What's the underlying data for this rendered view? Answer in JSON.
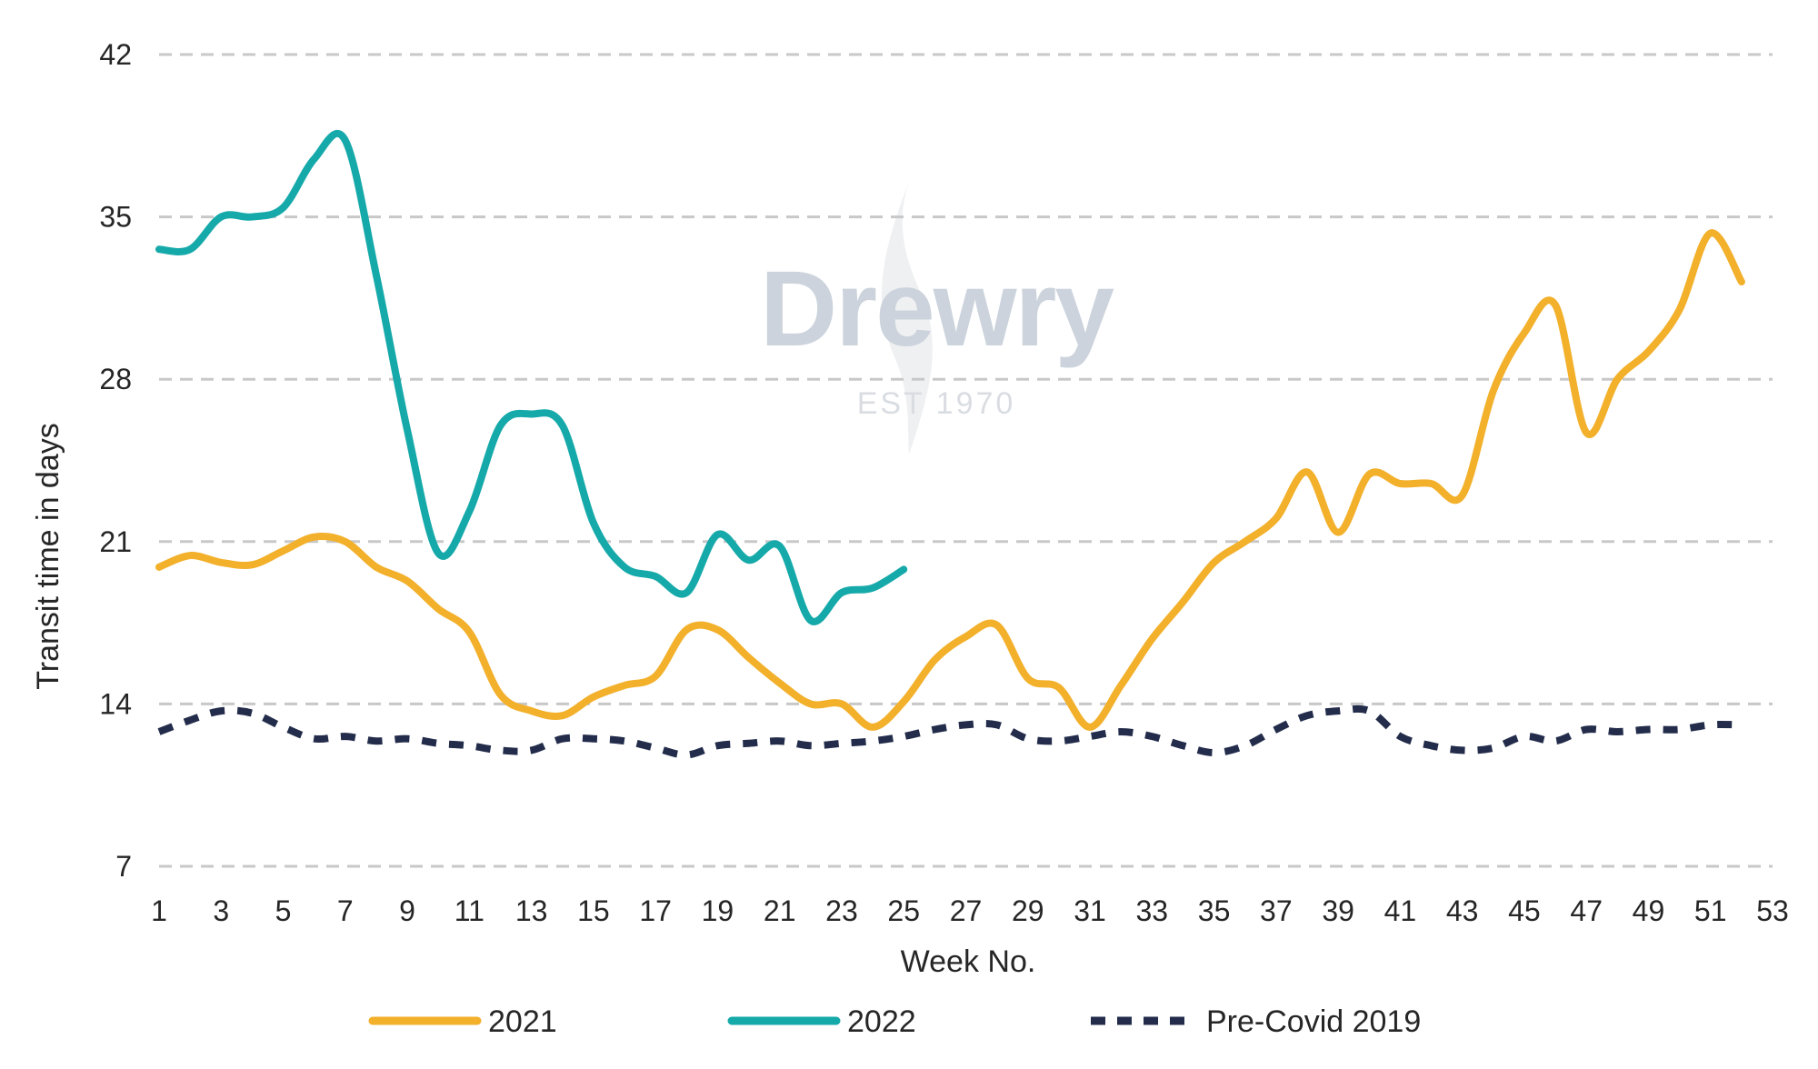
{
  "chart_data": {
    "type": "line",
    "title": "",
    "xlabel": "Week No.",
    "ylabel": "Transit time in days",
    "xlim": [
      1,
      53
    ],
    "ylim": [
      7,
      42
    ],
    "x_ticks": [
      1,
      3,
      5,
      7,
      9,
      11,
      13,
      15,
      17,
      19,
      21,
      23,
      25,
      27,
      29,
      31,
      33,
      35,
      37,
      39,
      41,
      43,
      45,
      47,
      49,
      51,
      53
    ],
    "y_ticks": [
      7,
      14,
      21,
      28,
      35,
      42
    ],
    "grid": "horizontal-dashed",
    "legend_position": "bottom",
    "watermark": {
      "brand": "Drewry",
      "est": "EST 1970"
    },
    "series": [
      {
        "name": "2021",
        "color": "#f2b02b",
        "style": "solid",
        "x": [
          1,
          2,
          3,
          4,
          5,
          6,
          7,
          8,
          9,
          10,
          11,
          12,
          13,
          14,
          15,
          16,
          17,
          18,
          19,
          20,
          21,
          22,
          23,
          24,
          25,
          26,
          27,
          28,
          29,
          30,
          31,
          32,
          33,
          34,
          35,
          36,
          37,
          38,
          39,
          40,
          41,
          42,
          43,
          44,
          45,
          46,
          47,
          48,
          49,
          50,
          51,
          52
        ],
        "values": [
          19.9,
          20.4,
          20.1,
          20.0,
          20.6,
          21.2,
          21.0,
          19.9,
          19.3,
          18.1,
          17.1,
          14.4,
          13.7,
          13.5,
          14.3,
          14.8,
          15.2,
          17.2,
          17.2,
          16.0,
          14.9,
          14.0,
          14.0,
          13.0,
          14.1,
          15.9,
          16.9,
          17.4,
          15.1,
          14.7,
          13.0,
          14.8,
          16.8,
          18.4,
          20.1,
          21.0,
          22.0,
          24.0,
          21.4,
          23.9,
          23.5,
          23.5,
          23.0,
          27.5,
          30.0,
          31.2,
          25.7,
          28.0,
          29.2,
          31.0,
          34.3,
          32.2
        ]
      },
      {
        "name": "2022",
        "color": "#16a9aa",
        "style": "solid",
        "x": [
          1,
          2,
          3,
          4,
          5,
          6,
          7,
          8,
          9,
          10,
          11,
          12,
          13,
          14,
          15,
          16,
          17,
          18,
          19,
          20,
          21,
          22,
          23,
          24,
          25
        ],
        "values": [
          33.6,
          33.6,
          35.0,
          35.0,
          35.4,
          37.5,
          38.3,
          32.5,
          25.8,
          20.5,
          22.3,
          26.0,
          26.5,
          26.0,
          21.8,
          19.9,
          19.5,
          18.8,
          21.3,
          20.2,
          20.8,
          17.6,
          18.8,
          19.0,
          19.8
        ]
      },
      {
        "name": "Pre-Covid 2019",
        "color": "#232d4b",
        "style": "dashed",
        "x": [
          1,
          2,
          3,
          4,
          5,
          6,
          7,
          8,
          9,
          10,
          11,
          12,
          13,
          14,
          15,
          16,
          17,
          18,
          19,
          20,
          21,
          22,
          23,
          24,
          25,
          26,
          27,
          28,
          29,
          30,
          31,
          32,
          33,
          34,
          35,
          36,
          37,
          38,
          39,
          40,
          41,
          42,
          43,
          44,
          45,
          46,
          47,
          48,
          49,
          50,
          51,
          52
        ],
        "values": [
          12.8,
          13.3,
          13.7,
          13.6,
          13.0,
          12.5,
          12.6,
          12.4,
          12.5,
          12.3,
          12.2,
          12.0,
          12.0,
          12.5,
          12.5,
          12.4,
          12.1,
          11.8,
          12.2,
          12.3,
          12.4,
          12.2,
          12.3,
          12.4,
          12.6,
          12.9,
          13.1,
          13.1,
          12.5,
          12.4,
          12.6,
          12.8,
          12.6,
          12.2,
          11.9,
          12.2,
          12.9,
          13.5,
          13.7,
          13.7,
          12.6,
          12.2,
          12.0,
          12.1,
          12.6,
          12.4,
          12.9,
          12.8,
          12.9,
          12.9,
          13.1,
          13.1
        ]
      }
    ]
  }
}
